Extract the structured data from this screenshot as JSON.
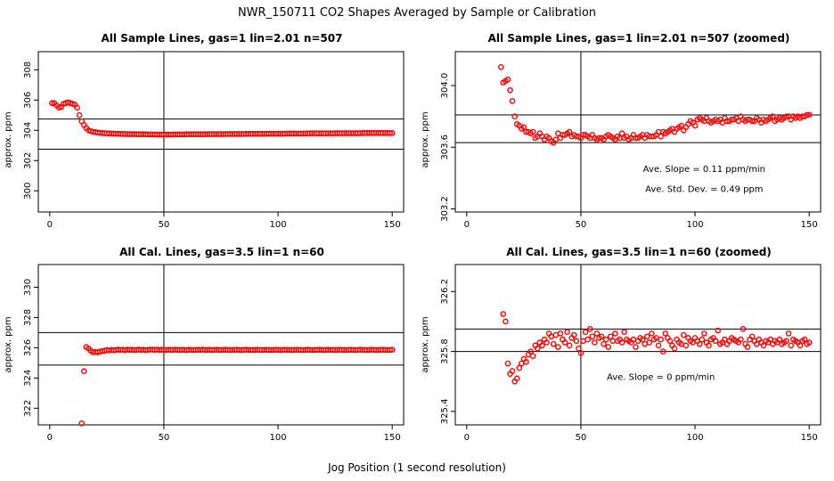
{
  "figure": {
    "title": "NWR_150711  CO2 Shapes Averaged by Sample or Calibration",
    "xlabel": "Jog Position (1 second resolution)"
  },
  "chart_data": [
    {
      "type": "scatter",
      "title": "All Sample Lines, gas=1 lin=2.01 n=507",
      "xlabel": "",
      "ylabel": "approx. ppm",
      "xlim": [
        -5,
        155
      ],
      "ylim": [
        298.6,
        309.2
      ],
      "xticks": [
        "0",
        "50",
        "100",
        "150"
      ],
      "xtick_values": [
        0,
        50,
        100,
        150
      ],
      "yticks": [
        "300",
        "302",
        "304",
        "306",
        "308"
      ],
      "ytick_values": [
        300,
        302,
        304,
        306,
        308
      ],
      "hlines": [
        304.75,
        302.75
      ],
      "vline": 50,
      "annotations": [],
      "color": "#ff0000",
      "series": [
        {
          "x_start": 1,
          "x_step": 1,
          "y": [
            305.8,
            305.8,
            305.65,
            305.5,
            305.55,
            305.75,
            305.8,
            305.85,
            305.8,
            305.75,
            305.7,
            305.5,
            305.0,
            304.6,
            304.35,
            304.15,
            304.0,
            303.95,
            303.9,
            303.88,
            303.85,
            303.83,
            303.82,
            303.81,
            303.8,
            303.8,
            303.79,
            303.78,
            303.78,
            303.77,
            303.77,
            303.76,
            303.76,
            303.75,
            303.75,
            303.75,
            303.75,
            303.74,
            303.74,
            303.74,
            303.74,
            303.74,
            303.73,
            303.73,
            303.73,
            303.73,
            303.72,
            303.72,
            303.72,
            303.72,
            303.72,
            303.72,
            303.72,
            303.73,
            303.73,
            303.73,
            303.73,
            303.73,
            303.73,
            303.74,
            303.74,
            303.74,
            303.74,
            303.74,
            303.74,
            303.74,
            303.74,
            303.74,
            303.75,
            303.75,
            303.75,
            303.75,
            303.75,
            303.75,
            303.75,
            303.75,
            303.75,
            303.76,
            303.76,
            303.76,
            303.76,
            303.76,
            303.76,
            303.76,
            303.76,
            303.77,
            303.77,
            303.77,
            303.77,
            303.77,
            303.77,
            303.77,
            303.77,
            303.77,
            303.78,
            303.78,
            303.78,
            303.78,
            303.78,
            303.78,
            303.78,
            303.78,
            303.78,
            303.79,
            303.79,
            303.79,
            303.79,
            303.79,
            303.79,
            303.79,
            303.79,
            303.79,
            303.8,
            303.8,
            303.8,
            303.8,
            303.8,
            303.8,
            303.8,
            303.8,
            303.8,
            303.8,
            303.8,
            303.8,
            303.81,
            303.81,
            303.81,
            303.81,
            303.81,
            303.81,
            303.81,
            303.81,
            303.81,
            303.81,
            303.81,
            303.81,
            303.82,
            303.82,
            303.82,
            303.82,
            303.82,
            303.82,
            303.82,
            303.82,
            303.82,
            303.82,
            303.82,
            303.82,
            303.82,
            303.82
          ]
        }
      ]
    },
    {
      "type": "scatter",
      "title": "All Sample Lines, gas=1 lin=2.01 n=507 (zoomed)",
      "xlabel": "",
      "ylabel": "approx. ppm",
      "xlim": [
        -5,
        155
      ],
      "ylim": [
        303.18,
        304.22
      ],
      "xticks": [
        "0",
        "50",
        "100",
        "150"
      ],
      "xtick_values": [
        0,
        50,
        100,
        150
      ],
      "yticks": [
        "303.2",
        "303.6",
        "304.0"
      ],
      "ytick_values": [
        303.2,
        303.6,
        304.0
      ],
      "hlines": [
        303.81,
        303.63
      ],
      "vline": 50,
      "annotations": [
        {
          "text": "Ave. Slope =  0.11  ppm/min",
          "x": 104,
          "y": 303.44
        },
        {
          "text": "Ave. Std. Dev. =  0.49  ppm",
          "x": 104,
          "y": 303.31
        }
      ],
      "color": "#ff0000",
      "series": [
        {
          "x_start": 15,
          "x_step": 1,
          "y": [
            304.12,
            304.02,
            304.03,
            304.04,
            303.97,
            303.9,
            303.8,
            303.75,
            303.74,
            303.72,
            303.73,
            303.7,
            303.7,
            303.69,
            303.7,
            303.66,
            303.67,
            303.69,
            303.67,
            303.65,
            303.67,
            303.66,
            303.64,
            303.63,
            303.65,
            303.69,
            303.66,
            303.68,
            303.68,
            303.69,
            303.7,
            303.67,
            303.68,
            303.67,
            303.67,
            303.66,
            303.68,
            303.68,
            303.67,
            303.66,
            303.68,
            303.66,
            303.65,
            303.66,
            303.66,
            303.65,
            303.67,
            303.68,
            303.67,
            303.66,
            303.65,
            303.67,
            303.66,
            303.69,
            303.66,
            303.67,
            303.65,
            303.66,
            303.68,
            303.66,
            303.66,
            303.67,
            303.68,
            303.66,
            303.68,
            303.67,
            303.67,
            303.67,
            303.68,
            303.7,
            303.67,
            303.7,
            303.69,
            303.7,
            303.71,
            303.72,
            303.7,
            303.72,
            303.73,
            303.74,
            303.71,
            303.73,
            303.75,
            303.77,
            303.76,
            303.74,
            303.78,
            303.79,
            303.78,
            303.77,
            303.79,
            303.77,
            303.76,
            303.77,
            303.78,
            303.77,
            303.78,
            303.76,
            303.79,
            303.77,
            303.77,
            303.78,
            303.78,
            303.79,
            303.77,
            303.8,
            303.78,
            303.77,
            303.78,
            303.78,
            303.77,
            303.77,
            303.79,
            303.78,
            303.76,
            303.78,
            303.77,
            303.78,
            303.79,
            303.8,
            303.77,
            303.78,
            303.79,
            303.78,
            303.79,
            303.8,
            303.8,
            303.78,
            303.8,
            303.79,
            303.8,
            303.79,
            303.8,
            303.8,
            303.81,
            303.81
          ]
        }
      ]
    },
    {
      "type": "scatter",
      "title": "All Cal. Lines, gas=3.5 lin=1 n=60",
      "xlabel": "",
      "ylabel": "approx. ppm",
      "xlim": [
        -5,
        155
      ],
      "ylim": [
        320.9,
        331.5
      ],
      "xticks": [
        "0",
        "50",
        "100",
        "150"
      ],
      "xtick_values": [
        0,
        50,
        100,
        150
      ],
      "yticks": [
        "322",
        "324",
        "326",
        "328",
        "330"
      ],
      "ytick_values": [
        322,
        324,
        326,
        328,
        330
      ],
      "hlines": [
        327.0,
        324.85
      ],
      "vline": 50,
      "annotations": [],
      "color": "#ff0000",
      "series": [
        {
          "x_start": 14,
          "x_step": 1,
          "y": [
            321.0,
            324.45,
            326.05,
            325.95,
            325.8,
            325.7,
            325.72,
            325.7,
            325.75,
            325.78,
            325.8,
            325.85,
            325.82,
            325.86,
            325.83,
            325.85,
            325.88,
            325.86,
            325.87,
            325.84,
            325.88,
            325.86,
            325.87,
            325.85,
            325.86,
            325.88,
            325.85,
            325.87,
            325.84,
            325.86,
            325.88,
            325.87,
            325.86,
            325.88,
            325.85,
            325.87,
            325.86,
            325.85,
            325.87,
            325.86,
            325.86,
            325.88,
            325.86,
            325.85,
            325.87,
            325.86,
            325.84,
            325.87,
            325.86,
            325.85,
            325.86,
            325.87,
            325.86,
            325.88,
            325.85,
            325.86,
            325.87,
            325.85,
            325.86,
            325.87,
            325.86,
            325.85,
            325.86,
            325.87,
            325.86,
            325.85,
            325.86,
            325.86,
            325.87,
            325.86,
            325.85,
            325.86,
            325.87,
            325.86,
            325.86,
            325.85,
            325.86,
            325.87,
            325.86,
            325.85,
            325.87,
            325.86,
            325.86,
            325.85,
            325.86,
            325.87,
            325.86,
            325.85,
            325.86,
            325.87,
            325.86,
            325.86,
            325.85,
            325.86,
            325.87,
            325.86,
            325.86,
            325.85,
            325.86,
            325.87,
            325.86,
            325.85,
            325.86,
            325.86,
            325.87,
            325.86,
            325.85,
            325.86,
            325.87,
            325.86,
            325.86,
            325.85,
            325.86,
            325.87,
            325.86,
            325.86,
            325.85,
            325.86,
            325.87,
            325.86,
            325.85,
            325.86,
            325.87,
            325.86,
            325.86,
            325.85,
            325.86,
            325.87,
            325.86,
            325.85,
            325.86,
            325.86,
            325.87,
            325.86,
            325.85,
            325.86,
            325.87
          ]
        }
      ]
    },
    {
      "type": "scatter",
      "title": "All Cal. Lines, gas=3.5 lin=1 n=60 (zoomed)",
      "xlabel": "",
      "ylabel": "approx. ppm",
      "xlim": [
        -5,
        155
      ],
      "ylim": [
        325.31,
        326.38
      ],
      "xticks": [
        "0",
        "50",
        "100",
        "150"
      ],
      "xtick_values": [
        0,
        50,
        100,
        150
      ],
      "yticks": [
        "325.4",
        "325.8",
        "326.2"
      ],
      "ytick_values": [
        325.4,
        325.8,
        326.2
      ],
      "hlines": [
        325.95,
        325.8
      ],
      "vline": 50,
      "annotations": [
        {
          "text": "Ave. Slope =  0  ppm/min",
          "x": 85,
          "y": 325.61
        }
      ],
      "color": "#ff0000",
      "series": [
        {
          "x_start": 16,
          "x_step": 1,
          "y": [
            326.05,
            326.0,
            325.72,
            325.65,
            325.67,
            325.6,
            325.62,
            325.69,
            325.72,
            325.75,
            325.73,
            325.78,
            325.8,
            325.77,
            325.84,
            325.82,
            325.86,
            325.84,
            325.88,
            325.86,
            325.92,
            325.9,
            325.85,
            325.91,
            325.83,
            325.92,
            325.88,
            325.86,
            325.93,
            325.84,
            325.89,
            325.91,
            325.87,
            325.82,
            325.79,
            325.87,
            325.93,
            325.88,
            325.95,
            325.9,
            325.86,
            325.92,
            325.89,
            325.9,
            325.85,
            325.88,
            325.83,
            325.9,
            325.87,
            325.92,
            325.87,
            325.88,
            325.86,
            325.93,
            325.88,
            325.87,
            325.86,
            325.88,
            325.83,
            325.87,
            325.89,
            325.88,
            325.85,
            325.9,
            325.86,
            325.92,
            325.88,
            325.89,
            325.84,
            325.88,
            325.8,
            325.92,
            325.89,
            325.87,
            325.84,
            325.82,
            325.88,
            325.86,
            325.85,
            325.91,
            325.84,
            325.89,
            325.87,
            325.86,
            325.89,
            325.87,
            325.85,
            325.88,
            325.92,
            325.86,
            325.84,
            325.88,
            325.89,
            325.87,
            325.94,
            325.85,
            325.86,
            325.88,
            325.85,
            325.87,
            325.89,
            325.88,
            325.87,
            325.86,
            325.88,
            325.95,
            325.85,
            325.83,
            325.88,
            325.9,
            325.87,
            325.85,
            325.88,
            325.86,
            325.84,
            325.87,
            325.86,
            325.88,
            325.85,
            325.87,
            325.86,
            325.88,
            325.85,
            325.86,
            325.87,
            325.92,
            325.84,
            325.88,
            325.87,
            325.86,
            325.84,
            325.87,
            325.88,
            325.85,
            325.86
          ]
        }
      ]
    }
  ]
}
